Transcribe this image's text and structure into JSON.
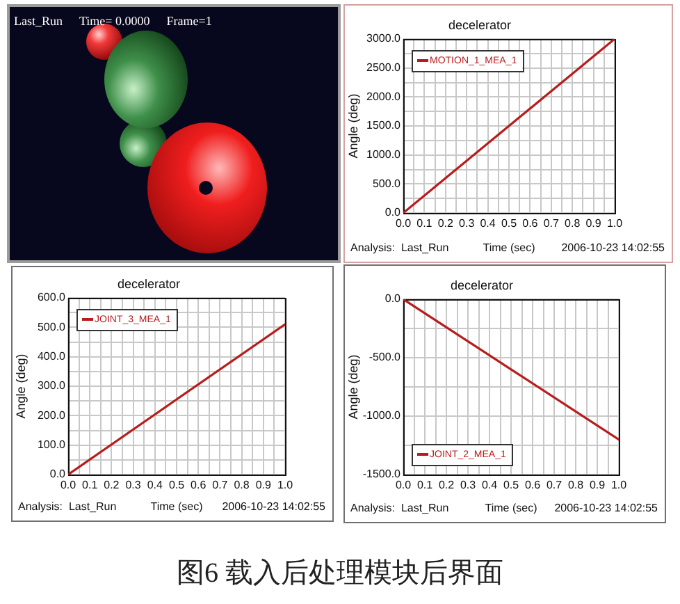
{
  "chart_data": [
    {
      "type": "other",
      "annotations": [
        "Last_Run",
        "Time= 0.0000",
        "Frame=1"
      ]
    },
    {
      "type": "line",
      "title": "decelerator",
      "xlabel": "Time (sec)",
      "ylabel": "Angle (deg)",
      "x": [
        0,
        0.5,
        1
      ],
      "series": [
        {
          "name": "MOTION_1_MEA_1",
          "color": "#b81c1c",
          "values": [
            0,
            1500,
            3000
          ]
        }
      ],
      "xlim": [
        0,
        1
      ],
      "xticks": [
        {
          "value": 0,
          "label": "0.0"
        },
        {
          "value": 0.05,
          "label": null
        },
        {
          "value": 0.1,
          "label": "0.1"
        },
        {
          "value": 0.15,
          "label": null
        },
        {
          "value": 0.2,
          "label": "0.2"
        },
        {
          "value": 0.25,
          "label": null
        },
        {
          "value": 0.3,
          "label": "0.3"
        },
        {
          "value": 0.35,
          "label": null
        },
        {
          "value": 0.4,
          "label": "0.4"
        },
        {
          "value": 0.45,
          "label": null
        },
        {
          "value": 0.5,
          "label": "0.5"
        },
        {
          "value": 0.55,
          "label": null
        },
        {
          "value": 0.6,
          "label": "0.6"
        },
        {
          "value": 0.65,
          "label": null
        },
        {
          "value": 0.7,
          "label": "0.7"
        },
        {
          "value": 0.75,
          "label": null
        },
        {
          "value": 0.8,
          "label": "0.8"
        },
        {
          "value": 0.85,
          "label": null
        },
        {
          "value": 0.9,
          "label": "0.9"
        },
        {
          "value": 0.95,
          "label": null
        },
        {
          "value": 1,
          "label": "1.0"
        }
      ],
      "ylim": [
        0,
        3000
      ],
      "yticks": [
        {
          "value": 0,
          "label": "0.0"
        },
        {
          "value": 250,
          "label": null
        },
        {
          "value": 500,
          "label": "500.0"
        },
        {
          "value": 750,
          "label": null
        },
        {
          "value": 1000,
          "label": "1000.0"
        },
        {
          "value": 1250,
          "label": null
        },
        {
          "value": 1500,
          "label": "1500.0"
        },
        {
          "value": 1750,
          "label": null
        },
        {
          "value": 2000,
          "label": "2000.0"
        },
        {
          "value": 2250,
          "label": null
        },
        {
          "value": 2500,
          "label": "2500.0"
        },
        {
          "value": 2750,
          "label": null
        },
        {
          "value": 3000,
          "label": "3000.0"
        }
      ],
      "grid": true,
      "legend": "top left",
      "annotations": [
        "Analysis:  Last_Run",
        "2006-10-23 14:02:55"
      ]
    },
    {
      "type": "line",
      "title": "decelerator",
      "xlabel": "Time (sec)",
      "ylabel": "Angle (deg)",
      "x": [
        0,
        0.5,
        1
      ],
      "series": [
        {
          "name": "JOINT_3_MEA_1",
          "color": "#b81c1c",
          "values": [
            0,
            255,
            510
          ]
        }
      ],
      "xlim": [
        0,
        1
      ],
      "xticks": [
        {
          "value": 0,
          "label": "0.0"
        },
        {
          "value": 0.05,
          "label": null
        },
        {
          "value": 0.1,
          "label": "0.1"
        },
        {
          "value": 0.15,
          "label": null
        },
        {
          "value": 0.2,
          "label": "0.2"
        },
        {
          "value": 0.25,
          "label": null
        },
        {
          "value": 0.3,
          "label": "0.3"
        },
        {
          "value": 0.35,
          "label": null
        },
        {
          "value": 0.4,
          "label": "0.4"
        },
        {
          "value": 0.45,
          "label": null
        },
        {
          "value": 0.5,
          "label": "0.5"
        },
        {
          "value": 0.55,
          "label": null
        },
        {
          "value": 0.6,
          "label": "0.6"
        },
        {
          "value": 0.65,
          "label": null
        },
        {
          "value": 0.7,
          "label": "0.7"
        },
        {
          "value": 0.75,
          "label": null
        },
        {
          "value": 0.8,
          "label": "0.8"
        },
        {
          "value": 0.85,
          "label": null
        },
        {
          "value": 0.9,
          "label": "0.9"
        },
        {
          "value": 0.95,
          "label": null
        },
        {
          "value": 1,
          "label": "1.0"
        }
      ],
      "ylim": [
        0,
        600
      ],
      "yticks": [
        {
          "value": 0,
          "label": "0.0"
        },
        {
          "value": 50,
          "label": null
        },
        {
          "value": 100,
          "label": "100.0"
        },
        {
          "value": 150,
          "label": null
        },
        {
          "value": 200,
          "label": "200.0"
        },
        {
          "value": 250,
          "label": null
        },
        {
          "value": 300,
          "label": "300.0"
        },
        {
          "value": 350,
          "label": null
        },
        {
          "value": 400,
          "label": "400.0"
        },
        {
          "value": 450,
          "label": null
        },
        {
          "value": 500,
          "label": "500.0"
        },
        {
          "value": 550,
          "label": null
        },
        {
          "value": 600,
          "label": "600.0"
        }
      ],
      "grid": true,
      "legend": "top left",
      "annotations": [
        "Analysis:  Last_Run",
        "2006-10-23 14:02:55"
      ]
    },
    {
      "type": "line",
      "title": "decelerator",
      "xlabel": "Time (sec)",
      "ylabel": "Angle (deg)",
      "x": [
        0,
        0.5,
        1
      ],
      "series": [
        {
          "name": "JOINT_2_MEA_1",
          "color": "#b81c1c",
          "values": [
            0,
            -600,
            -1200
          ]
        }
      ],
      "xlim": [
        0,
        1
      ],
      "xticks": [
        {
          "value": 0,
          "label": "0.0"
        },
        {
          "value": 0.05,
          "label": null
        },
        {
          "value": 0.1,
          "label": "0.1"
        },
        {
          "value": 0.15,
          "label": null
        },
        {
          "value": 0.2,
          "label": "0.2"
        },
        {
          "value": 0.25,
          "label": null
        },
        {
          "value": 0.3,
          "label": "0.3"
        },
        {
          "value": 0.35,
          "label": null
        },
        {
          "value": 0.4,
          "label": "0.4"
        },
        {
          "value": 0.45,
          "label": null
        },
        {
          "value": 0.5,
          "label": "0.5"
        },
        {
          "value": 0.55,
          "label": null
        },
        {
          "value": 0.6,
          "label": "0.6"
        },
        {
          "value": 0.65,
          "label": null
        },
        {
          "value": 0.7,
          "label": "0.7"
        },
        {
          "value": 0.75,
          "label": null
        },
        {
          "value": 0.8,
          "label": "0.8"
        },
        {
          "value": 0.85,
          "label": null
        },
        {
          "value": 0.9,
          "label": "0.9"
        },
        {
          "value": 0.95,
          "label": null
        },
        {
          "value": 1,
          "label": "1.0"
        }
      ],
      "ylim": [
        -1500,
        0
      ],
      "yticks": [
        {
          "value": 0,
          "label": "0.0"
        },
        {
          "value": -250,
          "label": null
        },
        {
          "value": -500,
          "label": "-500.0"
        },
        {
          "value": -750,
          "label": null
        },
        {
          "value": -1000,
          "label": "-1000.0"
        },
        {
          "value": -1250,
          "label": null
        },
        {
          "value": -1500,
          "label": "-1500.0"
        }
      ],
      "grid": true,
      "legend": "bottom left",
      "annotations": [
        "Analysis:  Last_Run",
        "2006-10-23 14:02:55"
      ]
    },
    {
      "type": "other",
      "annotations": [
        "图6 载入后处理模块后界面"
      ]
    }
  ]
}
